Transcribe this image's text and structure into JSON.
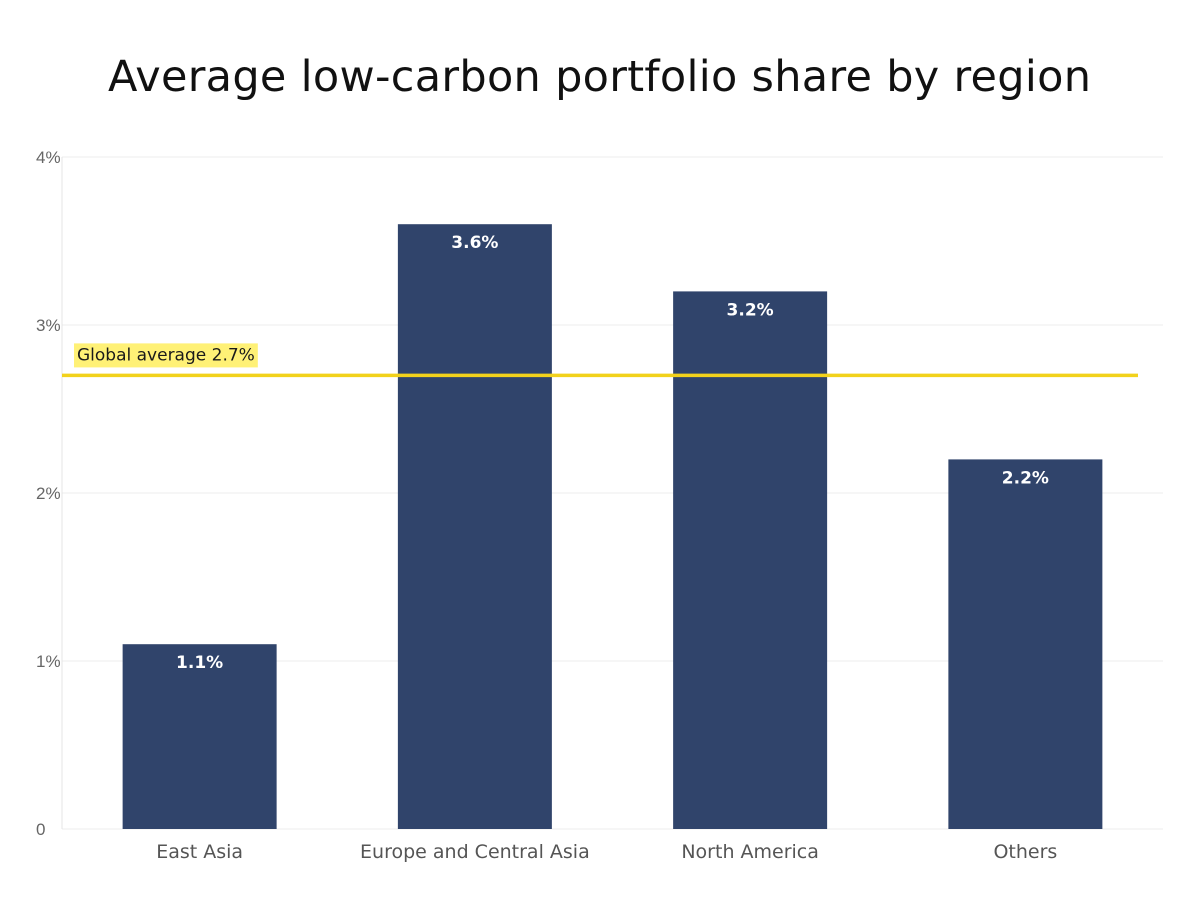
{
  "chart_data": {
    "type": "bar",
    "title": "Average low-carbon portfolio share by region",
    "xlabel": "",
    "ylabel": "",
    "categories": [
      "East Asia",
      "Europe and Central Asia",
      "North America",
      "Others"
    ],
    "values": [
      1.1,
      3.6,
      3.2,
      2.2
    ],
    "data_labels": [
      "1.1%",
      "3.6%",
      "3.2%",
      "2.2%"
    ],
    "ylim": [
      0,
      4
    ],
    "y_ticks": [
      0,
      1,
      2,
      3,
      4
    ],
    "y_tick_labels": [
      "0",
      "1%",
      "2%",
      "3%",
      "4%"
    ],
    "grid": true,
    "reference_line": {
      "value": 2.7,
      "label": "Global average 2.7%"
    },
    "colors": {
      "bar": "#30446b",
      "reference_line": "#f2d21b",
      "reference_label_bg": "#fff176",
      "grid": "#ececec"
    }
  }
}
